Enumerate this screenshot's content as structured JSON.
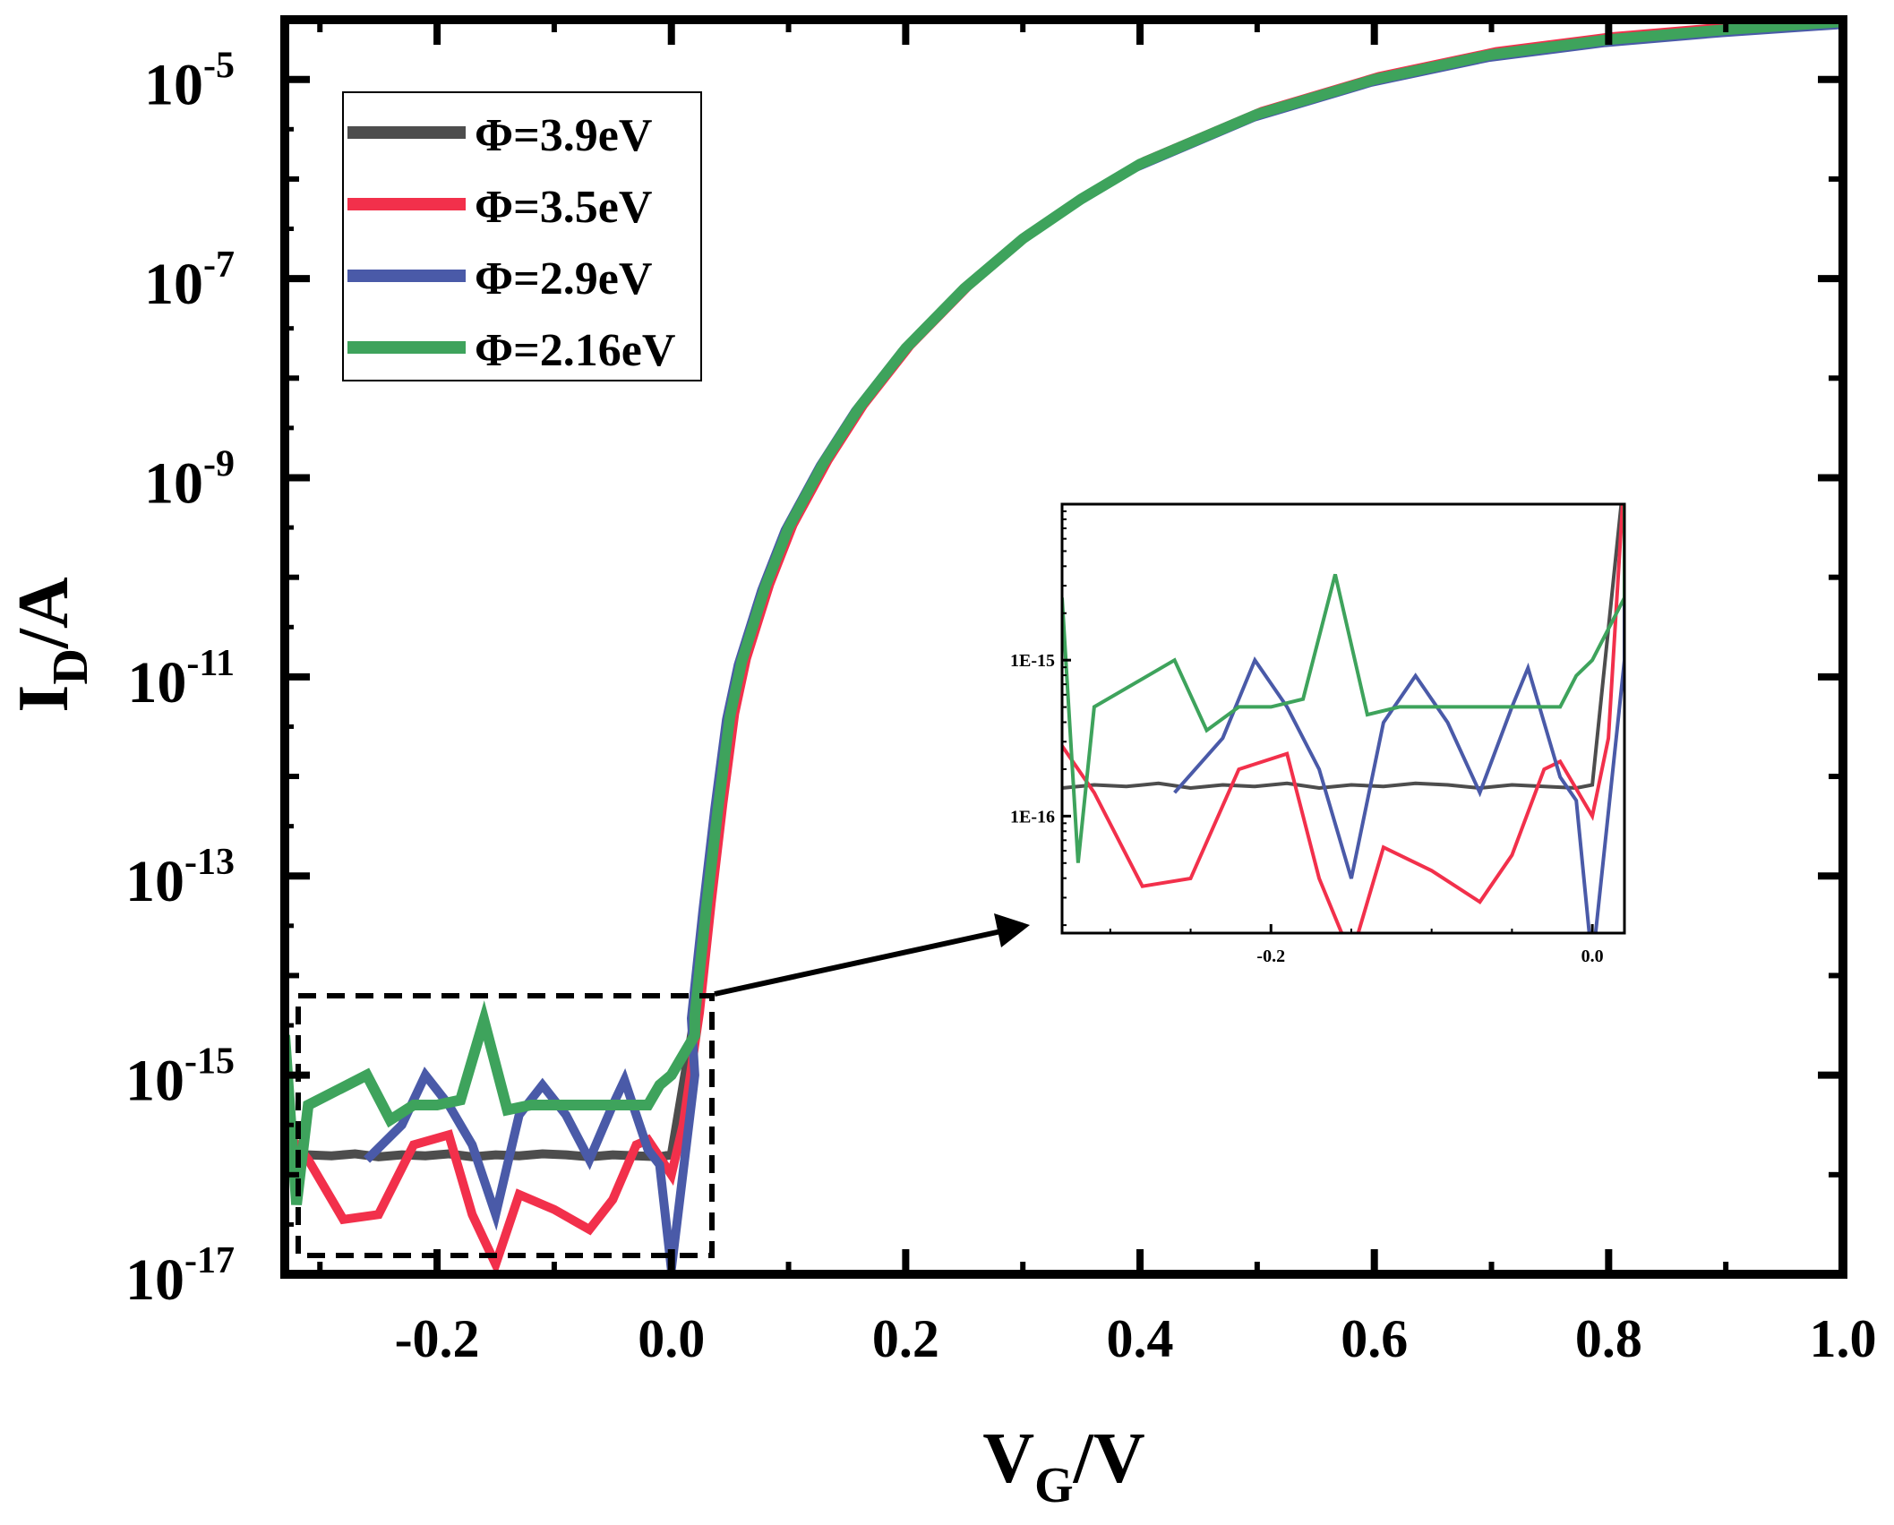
{
  "chart_data": [
    {
      "type": "line",
      "title": "",
      "xlabel_main": "V",
      "xlabel_sub": "G",
      "xlabel_tail": "/V",
      "ylabel_main": "I",
      "ylabel_sub": "D",
      "ylabel_tail": "/A",
      "xlim": [
        -0.33,
        1.0
      ],
      "ylim_log10": [
        -17,
        -4.4
      ],
      "xticks": [
        {
          "v": -0.2,
          "label": "-0.2"
        },
        {
          "v": 0.0,
          "label": "0.0"
        },
        {
          "v": 0.2,
          "label": "0.2"
        },
        {
          "v": 0.4,
          "label": "0.4"
        },
        {
          "v": 0.6,
          "label": "0.6"
        },
        {
          "v": 0.8,
          "label": "0.8"
        },
        {
          "v": 1.0,
          "label": "1.0"
        }
      ],
      "yticks": [
        {
          "exp": -5,
          "base": "10",
          "sup": "-5"
        },
        {
          "exp": -7,
          "base": "10",
          "sup": "-7"
        },
        {
          "exp": -9,
          "base": "10",
          "sup": "-9"
        },
        {
          "exp": -11,
          "base": "10",
          "sup": "-11"
        },
        {
          "exp": -13,
          "base": "10",
          "sup": "-13"
        },
        {
          "exp": -15,
          "base": "10",
          "sup": "-15"
        },
        {
          "exp": -17,
          "base": "10",
          "sup": "-17"
        }
      ],
      "legend_position": "top-left",
      "series": [
        {
          "name": "Φ=3.9eV",
          "color": "#4d4d4d",
          "leak": [
            [
              -0.33,
              -15.82
            ],
            [
              -0.31,
              -15.8
            ],
            [
              -0.29,
              -15.81
            ],
            [
              -0.27,
              -15.79
            ],
            [
              -0.25,
              -15.82
            ],
            [
              -0.23,
              -15.8
            ],
            [
              -0.21,
              -15.81
            ],
            [
              -0.19,
              -15.79
            ],
            [
              -0.17,
              -15.82
            ],
            [
              -0.15,
              -15.8
            ],
            [
              -0.13,
              -15.81
            ],
            [
              -0.11,
              -15.79
            ],
            [
              -0.09,
              -15.8
            ],
            [
              -0.07,
              -15.82
            ],
            [
              -0.05,
              -15.8
            ],
            [
              -0.03,
              -15.81
            ],
            [
              -0.01,
              -15.82
            ],
            [
              0.0,
              -15.8
            ]
          ],
          "on_shift": 0.0
        },
        {
          "name": "Φ=3.5eV",
          "color": "#f2304b",
          "leak": [
            [
              -0.33,
              -15.55
            ],
            [
              -0.31,
              -15.85
            ],
            [
              -0.28,
              -16.45
            ],
            [
              -0.25,
              -16.4
            ],
            [
              -0.22,
              -15.7
            ],
            [
              -0.19,
              -15.6
            ],
            [
              -0.17,
              -16.4
            ],
            [
              -0.15,
              -16.9
            ],
            [
              -0.13,
              -16.2
            ],
            [
              -0.1,
              -16.35
            ],
            [
              -0.07,
              -16.55
            ],
            [
              -0.05,
              -16.25
            ],
            [
              -0.03,
              -15.7
            ],
            [
              -0.02,
              -15.65
            ],
            [
              0.0,
              -16.0
            ],
            [
              0.01,
              -15.5
            ]
          ],
          "on_shift": 0.004
        },
        {
          "name": "Φ=2.9eV",
          "color": "#4a5aa8",
          "leak": [
            [
              -0.26,
              -15.85
            ],
            [
              -0.23,
              -15.5
            ],
            [
              -0.21,
              -15.0
            ],
            [
              -0.19,
              -15.3
            ],
            [
              -0.17,
              -15.7
            ],
            [
              -0.15,
              -16.4
            ],
            [
              -0.13,
              -15.4
            ],
            [
              -0.11,
              -15.1
            ],
            [
              -0.09,
              -15.4
            ],
            [
              -0.07,
              -15.85
            ],
            [
              -0.05,
              -15.3
            ],
            [
              -0.04,
              -15.05
            ],
            [
              -0.02,
              -15.75
            ],
            [
              -0.01,
              -15.9
            ],
            [
              0.0,
              -16.95
            ],
            [
              0.02,
              -15.0
            ]
          ],
          "on_shift": -0.003
        },
        {
          "name": "Φ=2.16eV",
          "color": "#3ea35c",
          "leak": [
            [
              -0.33,
              -14.6
            ],
            [
              -0.32,
              -16.3
            ],
            [
              -0.31,
              -15.3
            ],
            [
              -0.26,
              -15.0
            ],
            [
              -0.24,
              -15.45
            ],
            [
              -0.22,
              -15.3
            ],
            [
              -0.2,
              -15.3
            ],
            [
              -0.18,
              -15.25
            ],
            [
              -0.16,
              -14.45
            ],
            [
              -0.14,
              -15.35
            ],
            [
              -0.12,
              -15.3
            ],
            [
              -0.08,
              -15.3
            ],
            [
              -0.02,
              -15.3
            ],
            [
              -0.01,
              -15.1
            ],
            [
              0.0,
              -15.0
            ],
            [
              0.02,
              -14.6
            ]
          ],
          "on_shift": 0.0
        }
      ],
      "transfer_curve_log10": [
        [
          0.02,
          -14.4
        ],
        [
          0.03,
          -13.3
        ],
        [
          0.04,
          -12.3
        ],
        [
          0.05,
          -11.4
        ],
        [
          0.06,
          -10.85
        ],
        [
          0.08,
          -10.1
        ],
        [
          0.1,
          -9.5
        ],
        [
          0.13,
          -8.85
        ],
        [
          0.16,
          -8.3
        ],
        [
          0.2,
          -7.7
        ],
        [
          0.25,
          -7.1
        ],
        [
          0.3,
          -6.6
        ],
        [
          0.35,
          -6.2
        ],
        [
          0.4,
          -5.85
        ],
        [
          0.5,
          -5.35
        ],
        [
          0.6,
          -5.0
        ],
        [
          0.7,
          -4.75
        ],
        [
          0.8,
          -4.6
        ],
        [
          0.9,
          -4.5
        ],
        [
          1.0,
          -4.42
        ]
      ]
    },
    {
      "type": "line",
      "title": "inset",
      "xlim": [
        -0.33,
        0.02
      ],
      "ylim_log10": [
        -16.75,
        -14.0
      ],
      "xticks": [
        {
          "v": -0.2,
          "label": "-0.2"
        },
        {
          "v": 0.0,
          "label": "0.0"
        }
      ],
      "yticks": [
        {
          "exp": -15,
          "label": "1E-15"
        },
        {
          "exp": -16,
          "label": "1E-16"
        }
      ]
    }
  ],
  "annotation": {
    "zoom_box": "dashed rectangle around leakage region",
    "arrow": "points to inset"
  }
}
